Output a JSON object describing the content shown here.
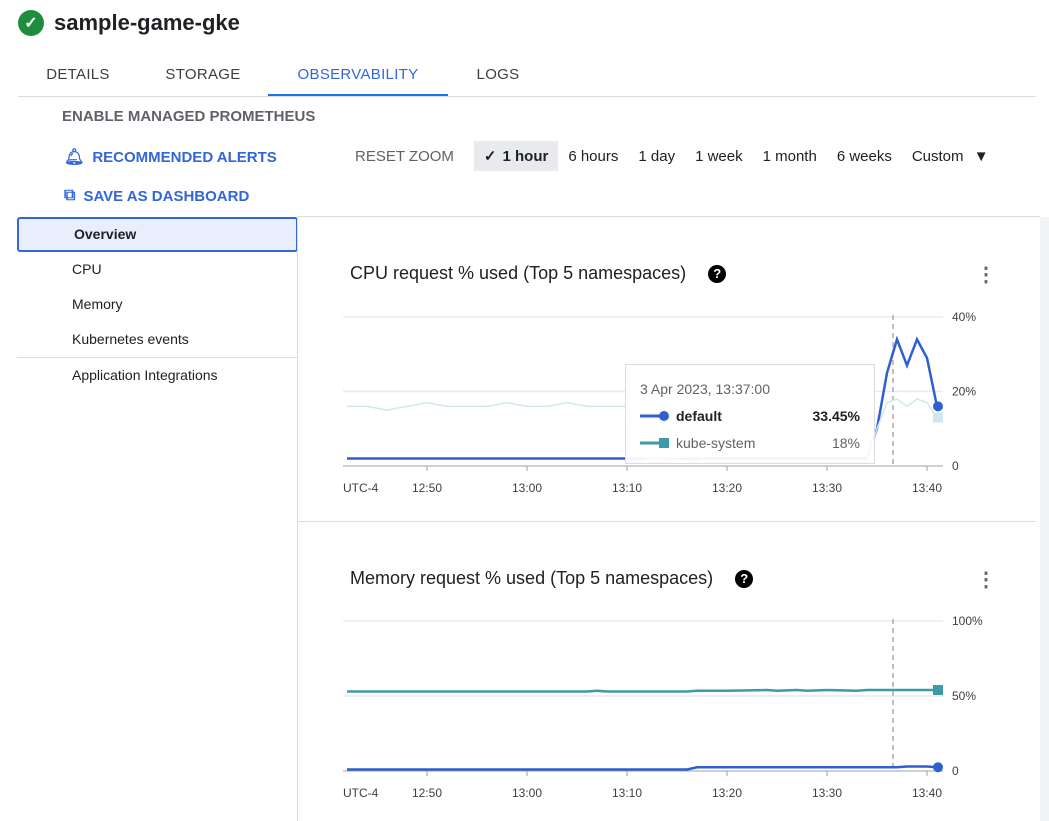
{
  "header": {
    "title": "sample-game-gke",
    "status_icon": "check-circle-icon"
  },
  "tabs": [
    {
      "label": "DETAILS"
    },
    {
      "label": "STORAGE"
    },
    {
      "label": "OBSERVABILITY",
      "active": true
    },
    {
      "label": "LOGS"
    }
  ],
  "actions": {
    "prometheus": "ENABLE MANAGED PROMETHEUS",
    "alerts": "RECOMMENDED ALERTS",
    "dashboard": "SAVE AS DASHBOARD"
  },
  "time_range": {
    "reset": "RESET ZOOM",
    "options": [
      "1 hour",
      "6 hours",
      "1 day",
      "1 week",
      "1 month",
      "6 weeks"
    ],
    "selected": "1 hour",
    "custom": "Custom"
  },
  "sidebar": {
    "items": [
      {
        "label": "Overview",
        "active": true
      },
      {
        "label": "CPU"
      },
      {
        "label": "Memory"
      },
      {
        "label": "Kubernetes events"
      },
      {
        "label": "Application Integrations"
      }
    ]
  },
  "tooltip": {
    "time": "3 Apr 2023, 13:37:00",
    "rows": [
      {
        "name": "default",
        "value": "33.45%"
      },
      {
        "name": "kube-system",
        "value": "18%"
      }
    ]
  },
  "colors": {
    "default": "#2f5fd0",
    "kube_system": "#3e9aa8",
    "accent": "#3367d6"
  },
  "chart_data": [
    {
      "type": "line",
      "title": "CPU request % used (Top 5 namespaces)",
      "ylim": [
        0,
        40
      ],
      "yticks": [
        "0",
        "20%",
        "40%"
      ],
      "xticks": [
        "UTC-4",
        "12:50",
        "13:00",
        "13:10",
        "13:20",
        "13:30",
        "13:40"
      ],
      "x": [
        "12:42",
        "12:44",
        "12:46",
        "12:48",
        "12:50",
        "12:52",
        "12:54",
        "12:56",
        "12:58",
        "13:00",
        "13:02",
        "13:04",
        "13:06",
        "13:08",
        "13:10",
        "13:12",
        "13:14",
        "13:16",
        "13:17",
        "13:18",
        "13:20",
        "13:22",
        "13:24",
        "13:26",
        "13:28",
        "13:30",
        "13:32",
        "13:34",
        "13:35",
        "13:36",
        "13:37",
        "13:38",
        "13:39",
        "13:40",
        "13:41"
      ],
      "series": [
        {
          "name": "default",
          "values": [
            2,
            2,
            2,
            2,
            2,
            2,
            2,
            2,
            2,
            2,
            2,
            2,
            2,
            2,
            2,
            2,
            2,
            2,
            2,
            2,
            2,
            2,
            2,
            2,
            2,
            2,
            2,
            2,
            10,
            25,
            34,
            27,
            34,
            29,
            16
          ]
        },
        {
          "name": "kube-system",
          "values": [
            16,
            16,
            15,
            16,
            17,
            16,
            16,
            16,
            17,
            16,
            16,
            17,
            16,
            16,
            16,
            2,
            2,
            2.5,
            4,
            1,
            1,
            1,
            1,
            1,
            1,
            1,
            1,
            1,
            10,
            17,
            18,
            16,
            18,
            17,
            13
          ]
        }
      ]
    },
    {
      "type": "line",
      "title": "Memory request % used (Top 5 namespaces)",
      "ylim": [
        0,
        100
      ],
      "yticks": [
        "0",
        "50%",
        "100%"
      ],
      "xticks": [
        "UTC-4",
        "12:50",
        "13:00",
        "13:10",
        "13:20",
        "13:30",
        "13:40"
      ],
      "x": [
        "12:42",
        "12:50",
        "13:00",
        "13:06",
        "13:07",
        "13:08",
        "13:16",
        "13:17",
        "13:20",
        "13:24",
        "13:25",
        "13:27",
        "13:28",
        "13:30",
        "13:33",
        "13:34",
        "13:37",
        "13:38",
        "13:40",
        "13:41"
      ],
      "series": [
        {
          "name": "kube-system",
          "values": [
            53,
            53,
            53,
            53,
            53.5,
            53,
            53,
            53.5,
            53.5,
            54,
            53.5,
            54,
            53.5,
            54,
            53.5,
            54,
            54,
            54,
            54,
            54
          ]
        },
        {
          "name": "default",
          "values": [
            1,
            1,
            1,
            1,
            1,
            1,
            1,
            2.5,
            2.5,
            2.5,
            2.5,
            2.5,
            2.5,
            2.5,
            2.5,
            2.5,
            2.5,
            3,
            3,
            2.5
          ]
        }
      ]
    }
  ]
}
